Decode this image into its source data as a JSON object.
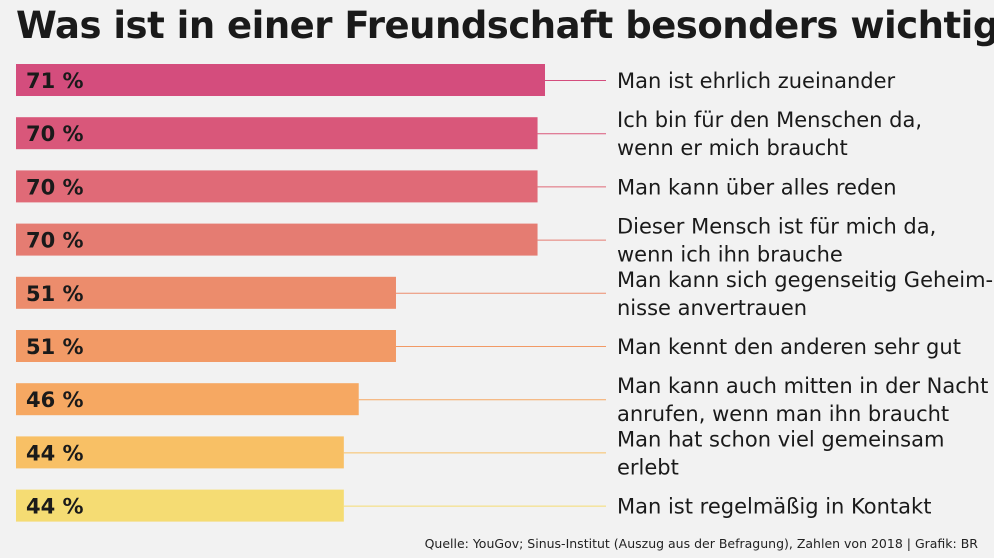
{
  "title": "Was ist in einer Freundschaft besonders wichtig?",
  "source": "Quelle: YouGov; Sinus-Institut (Auszug aus der Befragung), Zahlen von 2018 | Grafik: BR",
  "chart_data": {
    "type": "bar",
    "orientation": "horizontal",
    "unit": "%",
    "xlim": [
      0,
      100
    ],
    "items": [
      {
        "value": 71,
        "value_label": "71 %",
        "label_lines": [
          "Man ist ehrlich zueinander"
        ],
        "color": "#d44d7d"
      },
      {
        "value": 70,
        "value_label": "70 %",
        "label_lines": [
          "Ich bin für den Menschen da,",
          "wenn er mich braucht"
        ],
        "color": "#d9577a"
      },
      {
        "value": 70,
        "value_label": "70 %",
        "label_lines": [
          "Man kann über alles reden"
        ],
        "color": "#e06a77"
      },
      {
        "value": 70,
        "value_label": "70 %",
        "label_lines": [
          "Dieser Mensch ist für mich da,",
          "wenn ich ihn brauche"
        ],
        "color": "#e57c72"
      },
      {
        "value": 51,
        "value_label": "51 %",
        "label_lines": [
          "Man kann sich gegenseitig Geheim-",
          "nisse anvertrauen"
        ],
        "color": "#ec8c6c"
      },
      {
        "value": 51,
        "value_label": "51 %",
        "label_lines": [
          "Man kennt den anderen sehr gut"
        ],
        "color": "#f29a66"
      },
      {
        "value": 46,
        "value_label": "46 %",
        "label_lines": [
          "Man kann auch mitten in der Nacht",
          "anrufen, wenn man ihn braucht"
        ],
        "color": "#f6a862"
      },
      {
        "value": 44,
        "value_label": "44 %",
        "label_lines": [
          "Man hat schon viel gemeinsam",
          "erlebt"
        ],
        "color": "#f8c065"
      },
      {
        "value": 44,
        "value_label": "44 %",
        "label_lines": [
          "Man ist regelmäßig in Kontakt"
        ],
        "color": "#f5dc73"
      }
    ]
  }
}
